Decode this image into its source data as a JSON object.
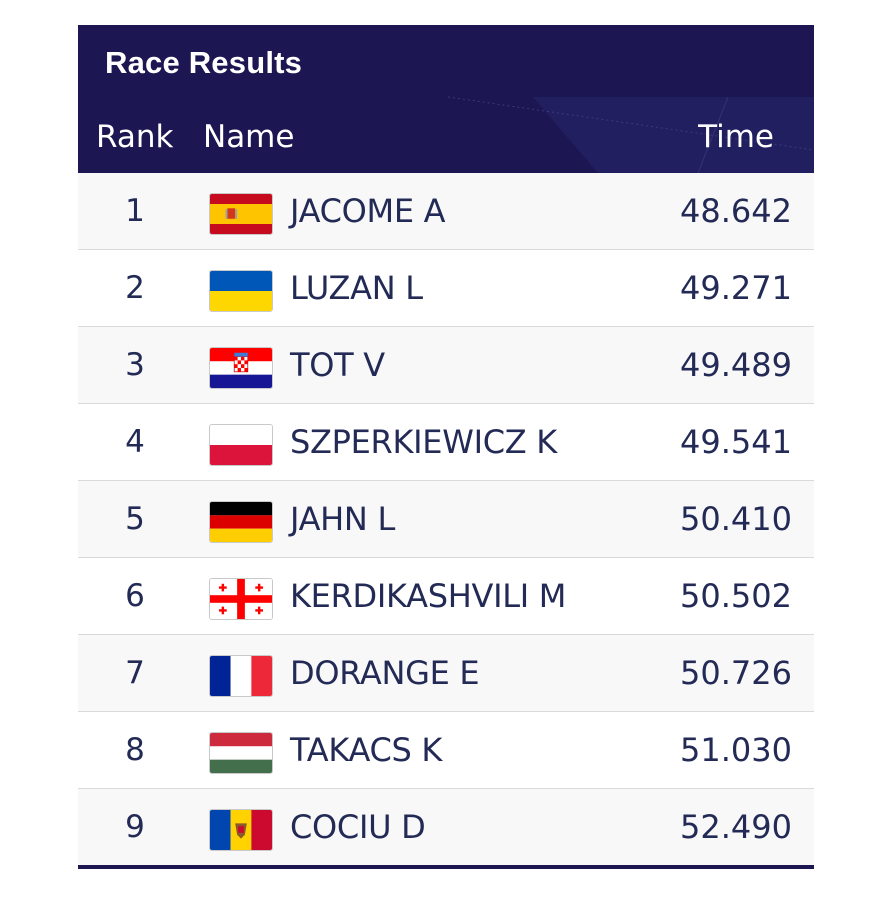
{
  "header": {
    "title": "Race Results",
    "col_rank": "Rank",
    "col_name": "Name",
    "col_time": "Time"
  },
  "colors": {
    "header_bg": "#1c1652",
    "text": "#222a55"
  },
  "rows": [
    {
      "rank": "1",
      "flag": "spain-flag-icon",
      "name": "JACOME A",
      "time": "48.642"
    },
    {
      "rank": "2",
      "flag": "ukraine-flag-icon",
      "name": "LUZAN L",
      "time": "49.271"
    },
    {
      "rank": "3",
      "flag": "croatia-flag-icon",
      "name": "TOT V",
      "time": "49.489"
    },
    {
      "rank": "4",
      "flag": "poland-flag-icon",
      "name": "SZPERKIEWICZ K",
      "time": "49.541"
    },
    {
      "rank": "5",
      "flag": "germany-flag-icon",
      "name": "JAHN L",
      "time": "50.410"
    },
    {
      "rank": "6",
      "flag": "georgia-flag-icon",
      "name": "KERDIKASHVILI M",
      "time": "50.502"
    },
    {
      "rank": "7",
      "flag": "france-flag-icon",
      "name": "DORANGE E",
      "time": "50.726"
    },
    {
      "rank": "8",
      "flag": "hungary-flag-icon",
      "name": "TAKACS K",
      "time": "51.030"
    },
    {
      "rank": "9",
      "flag": "moldova-flag-icon",
      "name": "COCIU D",
      "time": "52.490"
    }
  ]
}
